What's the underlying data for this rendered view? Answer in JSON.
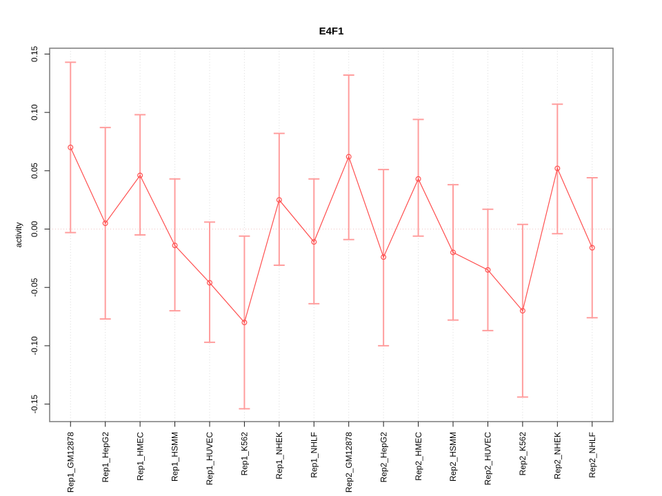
{
  "chart_data": {
    "type": "line",
    "title": "E4F1",
    "xlabel": "",
    "ylabel": "activity",
    "ylim": [
      -0.165,
      0.155
    ],
    "xlim": [
      0.4,
      16.6
    ],
    "yticks": [
      -0.15,
      -0.1,
      -0.05,
      0.0,
      0.05,
      0.1,
      0.15
    ],
    "grid": {
      "vertical_gridlines": true,
      "horizontal_gridlines": false,
      "zero_line": true,
      "style": "dotted"
    },
    "legend": "none",
    "categories": [
      "Rep1_GM12878",
      "Rep1_HepG2",
      "Rep1_HMEC",
      "Rep1_HSMM",
      "Rep1_HUVEC",
      "Rep1_K562",
      "Rep1_NHEK",
      "Rep1_NHLF",
      "Rep2_GM12878",
      "Rep2_HepG2",
      "Rep2_HMEC",
      "Rep2_HSMM",
      "Rep2_HUVEC",
      "Rep2_K562",
      "Rep2_NHEK",
      "Rep2_NHLF"
    ],
    "series": [
      {
        "name": "activity",
        "values": [
          0.07,
          0.005,
          0.046,
          -0.014,
          -0.046,
          -0.08,
          0.025,
          -0.011,
          0.062,
          -0.024,
          0.043,
          -0.02,
          -0.035,
          -0.07,
          0.052,
          -0.016
        ],
        "ci_lower": [
          -0.003,
          -0.077,
          -0.005,
          -0.07,
          -0.097,
          -0.154,
          -0.031,
          -0.064,
          -0.009,
          -0.1,
          -0.006,
          -0.078,
          -0.087,
          -0.144,
          -0.004,
          -0.076
        ],
        "ci_upper": [
          0.143,
          0.087,
          0.098,
          0.043,
          0.006,
          -0.006,
          0.082,
          0.043,
          0.132,
          0.051,
          0.094,
          0.038,
          0.017,
          0.004,
          0.107,
          0.044
        ]
      }
    ],
    "colors": {
      "line": "#ff4f4f",
      "point": "#ff4f4f",
      "error_bar": "#ff9d9d",
      "zero_line": "#f0c3c3",
      "gridline": "#dcdcdc",
      "box_border": "#828282",
      "tick": "#1a1a1a",
      "text": "#000000",
      "background": "#ffffff"
    }
  }
}
